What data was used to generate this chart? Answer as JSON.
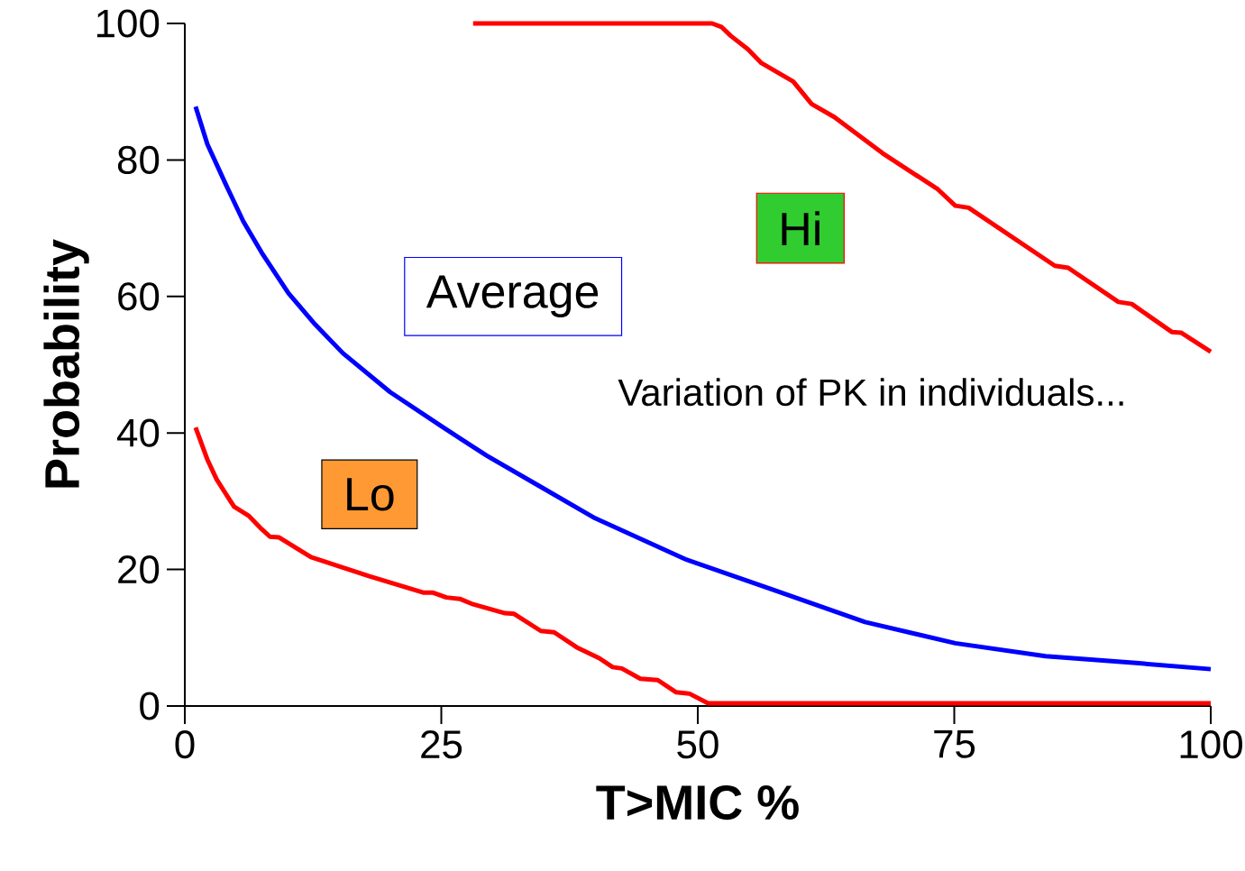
{
  "chart_data": {
    "type": "line",
    "xlabel": "T>MIC %",
    "ylabel": "Probability",
    "xlim": [
      0,
      100
    ],
    "ylim": [
      0,
      100
    ],
    "xticks": [
      0,
      25,
      50,
      75,
      100
    ],
    "yticks": [
      0,
      20,
      40,
      60,
      80,
      100
    ],
    "marker": "none",
    "line_style": "solid",
    "annotations": [
      "Variation of PK in individuals..."
    ],
    "series": [
      {
        "name": "Hi",
        "color": "#ff0000",
        "x": [
          28.1,
          35,
          45,
          51.4,
          52.3,
          53.2,
          54.9,
          56.2,
          59.3,
          61.1,
          63.3,
          68,
          73.4,
          75.1,
          76.4,
          84.8,
          86.1,
          91,
          92.3,
          96.2,
          97.1,
          100
        ],
        "values": [
          100,
          100,
          100,
          100,
          99.5,
          98.2,
          96.2,
          94.2,
          91.5,
          88.2,
          86.3,
          81,
          75.7,
          73.3,
          73,
          64.5,
          64.2,
          59.2,
          58.9,
          54.8,
          54.7,
          51.9
        ]
      },
      {
        "name": "Average",
        "color": "#0000ff",
        "x": [
          1.05,
          2.2,
          4,
          5.7,
          7.5,
          10.1,
          12.7,
          15.4,
          20,
          25,
          29.4,
          34.7,
          40,
          48.8,
          57.6,
          66.3,
          75.1,
          83.9,
          92.7,
          100
        ],
        "values": [
          87.8,
          82.3,
          76.4,
          71,
          66.4,
          60.5,
          55.9,
          51.7,
          46,
          41,
          36.7,
          32.1,
          27.5,
          21.5,
          16.9,
          12.3,
          9.2,
          7.3,
          6.3,
          5.4
        ]
      },
      {
        "name": "Lo",
        "color": "#ff0000",
        "x": [
          1.05,
          2.2,
          3.1,
          4.8,
          6.2,
          7.5,
          8.3,
          9.2,
          12.3,
          18,
          23.3,
          24.2,
          25.5,
          26.8,
          28.1,
          31.2,
          32.1,
          34.7,
          36,
          38.2,
          40.4,
          41.7,
          42.6,
          44.4,
          46.1,
          47.9,
          49.2,
          51,
          60,
          80,
          100
        ],
        "values": [
          40.8,
          36.1,
          33.2,
          29.2,
          27.9,
          25.9,
          24.8,
          24.7,
          21.8,
          19,
          16.6,
          16.6,
          15.9,
          15.7,
          14.9,
          13.6,
          13.5,
          11,
          10.8,
          8.6,
          7,
          5.7,
          5.5,
          4,
          3.8,
          2,
          1.8,
          0.4,
          0.4,
          0.4,
          0.4
        ]
      }
    ]
  }
}
